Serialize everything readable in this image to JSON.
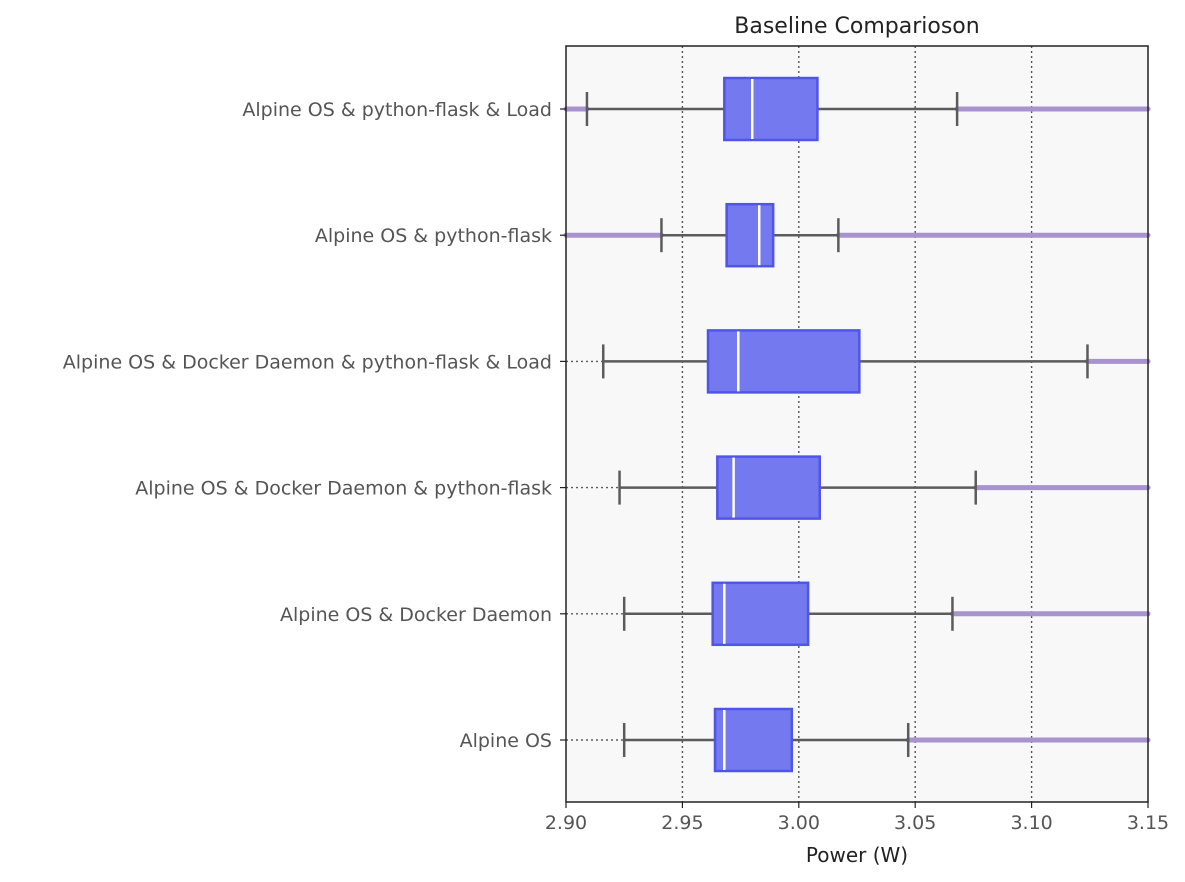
{
  "chart_data": {
    "type": "boxplot",
    "orientation": "horizontal",
    "title": "Baseline Comparioson",
    "xlabel": "Power (W)",
    "ylabel": "",
    "xlim": [
      2.9,
      3.15
    ],
    "xticks": [
      2.9,
      2.95,
      3.0,
      3.05,
      3.1,
      3.15
    ],
    "xtick_labels": [
      "2.90",
      "2.95",
      "3.00",
      "3.05",
      "3.10",
      "3.15"
    ],
    "grid": "x dotted",
    "colors": {
      "box_fill": "#7479EF",
      "box_edge": "#4F55E8",
      "median": "#FFFFFF",
      "whisker": "#5B5B5B",
      "outliers": "#A893CF",
      "plot_bg": "#F8F8F8"
    },
    "categories": [
      "Alpine OS & python-flask & Load",
      "Alpine OS & python-flask",
      "Alpine OS & Docker Daemon & python-flask & Load",
      "Alpine OS & Docker Daemon & python-flask",
      "Alpine OS & Docker Daemon",
      "Alpine OS"
    ],
    "boxes": [
      {
        "whisker_low": 2.909,
        "q1": 2.968,
        "median": 2.98,
        "q3": 3.008,
        "whisker_high": 3.068,
        "outliers_low": [
          2.9,
          2.909
        ],
        "outliers_high": [
          3.068,
          3.15
        ]
      },
      {
        "whisker_low": 2.941,
        "q1": 2.969,
        "median": 2.983,
        "q3": 2.989,
        "whisker_high": 3.017,
        "outliers_low": [
          2.9,
          2.941
        ],
        "outliers_high": [
          3.017,
          3.15
        ]
      },
      {
        "whisker_low": 2.916,
        "q1": 2.961,
        "median": 2.974,
        "q3": 3.026,
        "whisker_high": 3.124,
        "outliers_low": [],
        "outliers_high": [
          3.124,
          3.15
        ]
      },
      {
        "whisker_low": 2.923,
        "q1": 2.965,
        "median": 2.972,
        "q3": 3.009,
        "whisker_high": 3.076,
        "outliers_low": [],
        "outliers_high": [
          3.076,
          3.15
        ]
      },
      {
        "whisker_low": 2.925,
        "q1": 2.963,
        "median": 2.968,
        "q3": 3.004,
        "whisker_high": 3.066,
        "outliers_low": [],
        "outliers_high": [
          3.066,
          3.15
        ]
      },
      {
        "whisker_low": 2.925,
        "q1": 2.964,
        "median": 2.968,
        "q3": 2.997,
        "whisker_high": 3.047,
        "outliers_low": [],
        "outliers_high": [
          3.047,
          3.15
        ]
      }
    ]
  }
}
